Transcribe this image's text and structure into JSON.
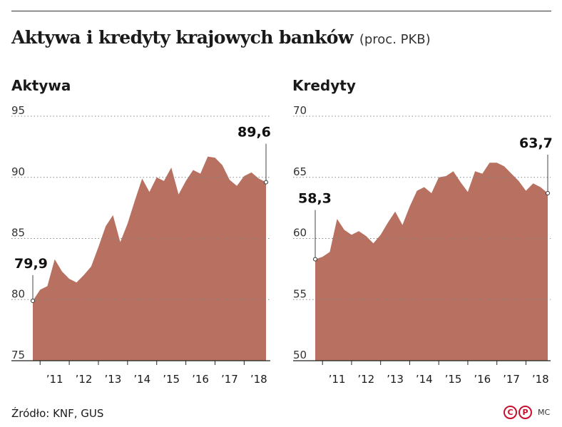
{
  "title": "Aktywa i kredyty krajowych banków",
  "subtitle": "(proc. PKB)",
  "source": "Źródło: KNF, GUS",
  "credit": "MC",
  "logo": {
    "c": "C",
    "p": "P",
    "color": "#c8102e"
  },
  "colors": {
    "fill": "#b87060",
    "line": "#555555",
    "grid": "#888888"
  },
  "chart_data": [
    {
      "type": "area",
      "title": "Aktywa",
      "yticks": [
        75,
        80,
        85,
        90,
        95
      ],
      "ylim": [
        75,
        95
      ],
      "xticks": [
        "’11",
        "’12",
        "’13",
        "’14",
        "’15",
        "’16",
        "’17",
        "’18"
      ],
      "xlim": [
        2010.75,
        2018.75
      ],
      "grid": true,
      "x": [
        2010.75,
        2011.0,
        2011.25,
        2011.5,
        2011.75,
        2012.0,
        2012.25,
        2012.5,
        2012.75,
        2013.0,
        2013.25,
        2013.5,
        2013.75,
        2014.0,
        2014.25,
        2014.5,
        2014.75,
        2015.0,
        2015.25,
        2015.5,
        2015.75,
        2016.0,
        2016.25,
        2016.5,
        2016.75,
        2017.0,
        2017.25,
        2017.5,
        2017.75,
        2018.0,
        2018.25,
        2018.5,
        2018.75
      ],
      "values": [
        79.9,
        80.8,
        81.1,
        83.3,
        82.3,
        81.7,
        81.4,
        82.0,
        82.7,
        84.3,
        86.0,
        86.9,
        84.7,
        86.2,
        88.1,
        89.9,
        88.8,
        90.0,
        89.7,
        90.8,
        88.6,
        89.7,
        90.6,
        90.3,
        91.7,
        91.6,
        91.0,
        89.8,
        89.3,
        90.1,
        90.4,
        89.9,
        89.6
      ],
      "annotations": [
        {
          "label": "79,9",
          "x": 2010.75,
          "y": 79.9
        },
        {
          "label": "89,6",
          "x": 2018.75,
          "y": 89.6
        }
      ]
    },
    {
      "type": "area",
      "title": "Kredyty",
      "yticks": [
        50,
        55,
        60,
        65,
        70
      ],
      "ylim": [
        50,
        70
      ],
      "xticks": [
        "’11",
        "’12",
        "’13",
        "’14",
        "’15",
        "’16",
        "’17",
        "’18"
      ],
      "xlim": [
        2010.75,
        2018.75
      ],
      "grid": true,
      "x": [
        2010.75,
        2011.0,
        2011.25,
        2011.5,
        2011.75,
        2012.0,
        2012.25,
        2012.5,
        2012.75,
        2013.0,
        2013.25,
        2013.5,
        2013.75,
        2014.0,
        2014.25,
        2014.5,
        2014.75,
        2015.0,
        2015.25,
        2015.5,
        2015.75,
        2016.0,
        2016.25,
        2016.5,
        2016.75,
        2017.0,
        2017.25,
        2017.5,
        2017.75,
        2018.0,
        2018.25,
        2018.5,
        2018.75
      ],
      "values": [
        58.3,
        58.5,
        58.9,
        61.6,
        60.7,
        60.3,
        60.6,
        60.2,
        59.6,
        60.3,
        61.3,
        62.2,
        61.1,
        62.6,
        63.9,
        64.2,
        63.7,
        65.0,
        65.1,
        65.5,
        64.6,
        63.8,
        65.5,
        65.3,
        66.2,
        66.2,
        65.9,
        65.3,
        64.7,
        63.9,
        64.5,
        64.2,
        63.7
      ],
      "annotations": [
        {
          "label": "58,3",
          "x": 2010.75,
          "y": 58.3
        },
        {
          "label": "63,7",
          "x": 2018.75,
          "y": 63.7
        }
      ]
    }
  ]
}
